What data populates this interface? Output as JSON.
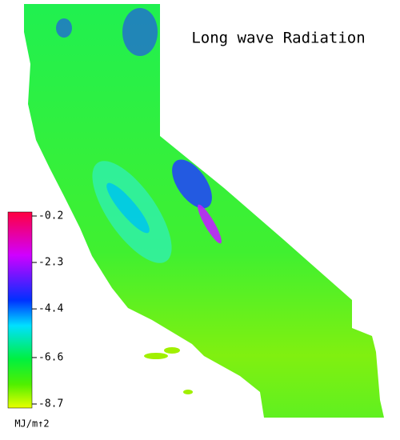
{
  "title": "Long wave Radiation",
  "colorbar": {
    "ticks": [
      -0.2,
      -2.3,
      -4.4,
      -6.6,
      -8.7
    ],
    "unit": "MJ/m↑2"
  }
}
